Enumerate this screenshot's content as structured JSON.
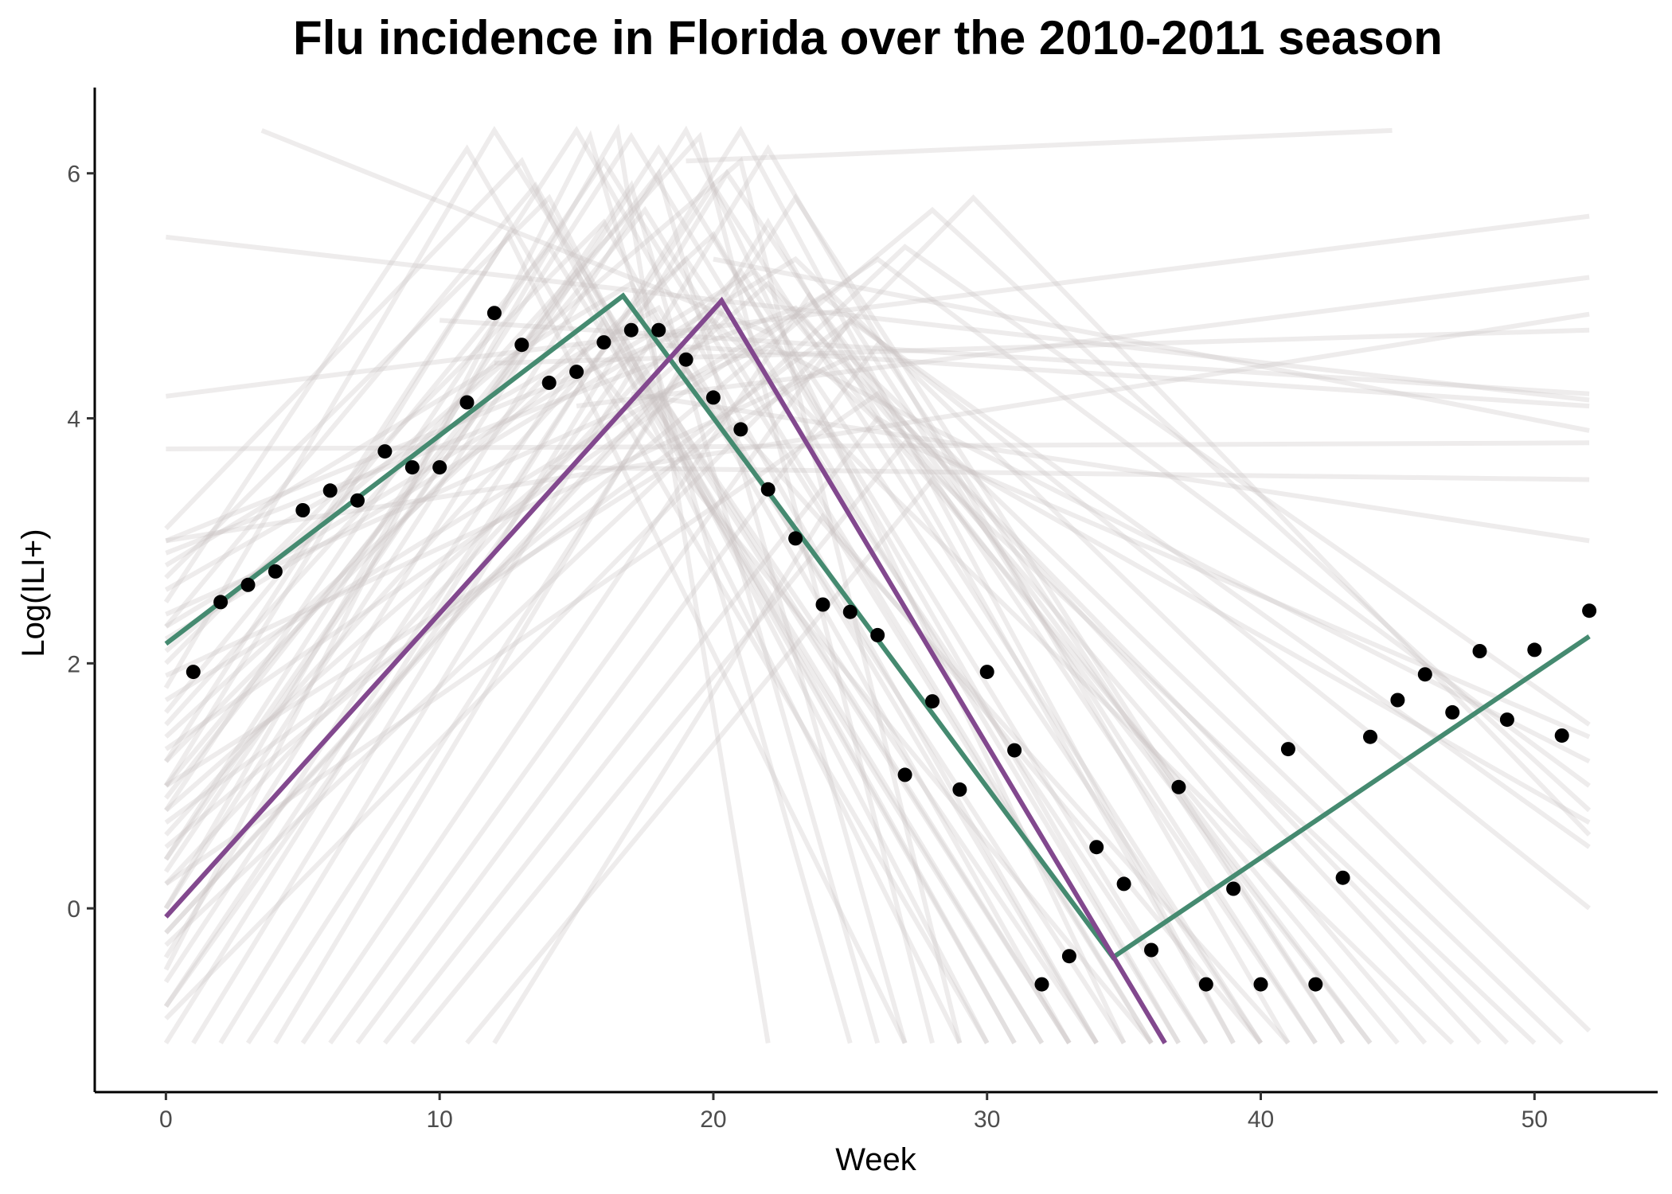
{
  "chart_data": {
    "type": "line",
    "title": "Flu incidence in Florida over the 2010-2011 season",
    "xlabel": "Week",
    "ylabel": "Log(ILI+)",
    "xlim": [
      -2.6,
      54.5
    ],
    "ylim": [
      -1.5,
      6.7
    ],
    "x_ticks": [
      0,
      10,
      20,
      30,
      40,
      50
    ],
    "y_ticks": [
      0,
      2,
      4,
      6
    ],
    "grid": false,
    "legend": "none",
    "colors": {
      "observed": "#000000",
      "fit": "#458a70",
      "alternative": "#82488e",
      "samples": "#c8c0c0"
    },
    "series": [
      {
        "kind": "points",
        "color_key": "observed",
        "x": [
          1,
          2,
          3,
          4,
          5,
          6,
          7,
          8,
          9,
          10,
          11,
          12,
          13,
          14,
          15,
          16,
          17,
          18,
          19,
          20,
          21,
          22,
          23,
          24,
          25,
          26,
          27,
          28,
          29,
          30,
          31,
          32,
          33,
          34,
          35,
          36,
          37,
          38,
          39,
          40,
          41,
          42,
          43,
          44,
          45,
          46,
          47,
          48,
          49,
          50,
          51,
          52
        ],
        "y": [
          1.93,
          2.5,
          2.64,
          2.75,
          3.25,
          3.41,
          3.33,
          3.73,
          3.6,
          3.6,
          4.13,
          4.86,
          4.6,
          4.29,
          4.38,
          4.62,
          4.72,
          4.72,
          4.48,
          4.17,
          3.91,
          3.42,
          3.02,
          2.48,
          2.42,
          2.23,
          1.09,
          1.69,
          0.97,
          1.93,
          1.29,
          -0.62,
          -0.39,
          0.5,
          0.2,
          -0.34,
          0.99,
          -0.62,
          0.16,
          -0.62,
          1.3,
          -0.62,
          0.25,
          1.4,
          1.7,
          1.91,
          1.6,
          2.1,
          1.54,
          2.11,
          1.41,
          2.43
        ]
      },
      {
        "kind": "line",
        "color_key": "fit",
        "x": [
          0,
          16.7,
          34.6,
          52
        ],
        "y": [
          2.16,
          5.0,
          -0.4,
          2.22
        ]
      },
      {
        "kind": "line",
        "color_key": "alternative",
        "x": [
          0,
          20.3,
          36.5
        ],
        "y": [
          -0.07,
          4.96,
          -1.1
        ]
      }
    ],
    "samples": [
      {
        "x": [
          3.5,
          22
        ],
        "y": [
          6.35,
          4.7
        ]
      },
      {
        "x": [
          0,
          52
        ],
        "y": [
          5.48,
          4.15
        ]
      },
      {
        "x": [
          0,
          52
        ],
        "y": [
          3.75,
          3.8
        ]
      },
      {
        "x": [
          0,
          52
        ],
        "y": [
          4.18,
          5.65
        ]
      },
      {
        "x": [
          0,
          52
        ],
        "y": [
          3.0,
          4.85
        ]
      },
      {
        "x": [
          17,
          52
        ],
        "y": [
          4.2,
          3.0
        ]
      },
      {
        "x": [
          14,
          52
        ],
        "y": [
          3.6,
          3.5
        ]
      },
      {
        "x": [
          12,
          52
        ],
        "y": [
          4.45,
          4.72
        ]
      },
      {
        "x": [
          10,
          52
        ],
        "y": [
          4.8,
          4.2
        ]
      },
      {
        "x": [
          20,
          52
        ],
        "y": [
          5.3,
          3.9
        ]
      },
      {
        "x": [
          15,
          52
        ],
        "y": [
          4.1,
          5.15
        ]
      },
      {
        "x": [
          18,
          52
        ],
        "y": [
          4.6,
          4.1
        ]
      },
      {
        "x": [
          19,
          44.8
        ],
        "y": [
          6.1,
          6.35
        ]
      },
      {
        "x": [
          0,
          11,
          30
        ],
        "y": [
          2.5,
          6.2,
          -1.1
        ]
      },
      {
        "x": [
          0,
          12,
          33
        ],
        "y": [
          1.8,
          6.35,
          -1.1
        ]
      },
      {
        "x": [
          0,
          13.5,
          31
        ],
        "y": [
          2.3,
          5.9,
          -1.1
        ]
      },
      {
        "x": [
          0,
          15,
          34
        ],
        "y": [
          1.2,
          6.35,
          -1.1
        ]
      },
      {
        "x": [
          0,
          16,
          36
        ],
        "y": [
          0.8,
          6.1,
          -1.1
        ]
      },
      {
        "x": [
          0,
          17,
          37
        ],
        "y": [
          0.4,
          6.3,
          -1.1
        ]
      },
      {
        "x": [
          0,
          18,
          38
        ],
        "y": [
          0.0,
          6.2,
          -1.1
        ]
      },
      {
        "x": [
          0,
          19,
          35
        ],
        "y": [
          -0.4,
          6.35,
          -1.1
        ]
      },
      {
        "x": [
          0,
          20,
          40
        ],
        "y": [
          -0.8,
          5.9,
          -1.1
        ]
      },
      {
        "x": [
          0,
          21,
          39
        ],
        "y": [
          -1.1,
          6.35,
          -1.1
        ]
      },
      {
        "x": [
          1,
          20.5,
          42
        ],
        "y": [
          -1.1,
          6.0,
          -1.1
        ]
      },
      {
        "x": [
          2,
          22,
          41
        ],
        "y": [
          -1.1,
          6.2,
          -1.1
        ]
      },
      {
        "x": [
          3,
          23,
          43
        ],
        "y": [
          -1.1,
          5.8,
          -1.1
        ]
      },
      {
        "x": [
          0,
          14,
          32
        ],
        "y": [
          1.6,
          5.4,
          -1.1
        ]
      },
      {
        "x": [
          0,
          16,
          33
        ],
        "y": [
          2.0,
          5.6,
          -1.1
        ]
      },
      {
        "x": [
          0,
          17.5,
          36
        ],
        "y": [
          1.0,
          5.7,
          -1.1
        ]
      },
      {
        "x": [
          0,
          19,
          38
        ],
        "y": [
          0.6,
          5.3,
          -1.1
        ]
      },
      {
        "x": [
          0,
          20,
          37
        ],
        "y": [
          1.4,
          5.5,
          -1.1
        ]
      },
      {
        "x": [
          0,
          21,
          40
        ],
        "y": [
          0.2,
          5.2,
          -1.1
        ]
      },
      {
        "x": [
          4,
          22,
          39
        ],
        "y": [
          -1.1,
          5.6,
          -1.1
        ]
      },
      {
        "x": [
          5,
          23.5,
          44
        ],
        "y": [
          -1.1,
          5.0,
          -1.1
        ]
      },
      {
        "x": [
          6,
          25,
          42
        ],
        "y": [
          -1.1,
          4.8,
          -1.1
        ]
      },
      {
        "x": [
          0,
          18,
          34
        ],
        "y": [
          2.6,
          4.9,
          -1.1
        ]
      },
      {
        "x": [
          0,
          17,
          35
        ],
        "y": [
          2.8,
          5.1,
          -1.1
        ]
      },
      {
        "x": [
          0,
          15,
          36
        ],
        "y": [
          1.2,
          4.6,
          -1.1
        ]
      },
      {
        "x": [
          0,
          19,
          41
        ],
        "y": [
          -0.2,
          4.4,
          -1.1
        ]
      },
      {
        "x": [
          7,
          26,
          43
        ],
        "y": [
          -1.1,
          4.6,
          -1.1
        ]
      },
      {
        "x": [
          0,
          16.5,
          22
        ],
        "y": [
          0.0,
          6.35,
          -1.1
        ]
      },
      {
        "x": [
          0,
          15.5,
          25
        ],
        "y": [
          -0.5,
          6.3,
          -1.1
        ]
      },
      {
        "x": [
          0,
          17,
          26
        ],
        "y": [
          0.3,
          5.9,
          -1.1
        ]
      },
      {
        "x": [
          0,
          18,
          27
        ],
        "y": [
          0.9,
          6.0,
          -1.1
        ]
      },
      {
        "x": [
          0,
          19.5,
          28
        ],
        "y": [
          1.5,
          6.3,
          -1.1
        ]
      },
      {
        "x": [
          0,
          21,
          29
        ],
        "y": [
          2.1,
          6.1,
          -1.1
        ]
      },
      {
        "x": [
          0,
          23,
          52
        ],
        "y": [
          2.2,
          5.3,
          -1.0
        ]
      },
      {
        "x": [
          0,
          24,
          52
        ],
        "y": [
          1.7,
          5.0,
          0.0
        ]
      },
      {
        "x": [
          0,
          25,
          52
        ],
        "y": [
          0.7,
          4.8,
          0.5
        ]
      },
      {
        "x": [
          0,
          26,
          52
        ],
        "y": [
          1.3,
          5.3,
          1.0
        ]
      },
      {
        "x": [
          0,
          27,
          52
        ],
        "y": [
          -0.3,
          5.4,
          1.5
        ]
      },
      {
        "x": [
          0,
          28,
          52
        ],
        "y": [
          0.5,
          5.7,
          0.8
        ]
      },
      {
        "x": [
          0,
          29.5,
          52
        ],
        "y": [
          -0.9,
          5.8,
          0.6
        ]
      },
      {
        "x": [
          0,
          22,
          52
        ],
        "y": [
          2.4,
          4.6,
          1.2
        ]
      },
      {
        "x": [
          0,
          24,
          50
        ],
        "y": [
          1.0,
          4.4,
          -1.1
        ]
      },
      {
        "x": [
          0,
          26,
          48
        ],
        "y": [
          0.2,
          4.2,
          -1.1
        ]
      },
      {
        "x": [
          0,
          23,
          46
        ],
        "y": [
          2.9,
          4.9,
          -1.1
        ]
      },
      {
        "x": [
          0,
          25,
          51
        ],
        "y": [
          1.9,
          4.5,
          -1.1
        ]
      },
      {
        "x": [
          0,
          21.5,
          45
        ],
        "y": [
          2.3,
          5.2,
          -1.1
        ]
      },
      {
        "x": [
          0,
          20,
          47
        ],
        "y": [
          3.0,
          4.8,
          -1.1
        ]
      },
      {
        "x": [
          0,
          22,
          49
        ],
        "y": [
          0.8,
          5.1,
          -1.1
        ]
      },
      {
        "x": [
          8,
          26,
          52
        ],
        "y": [
          -1.1,
          4.0,
          0.7
        ]
      },
      {
        "x": [
          9,
          27,
          52
        ],
        "y": [
          -1.1,
          3.8,
          1.4
        ]
      },
      {
        "x": [
          11,
          28,
          44
        ],
        "y": [
          -1.1,
          3.5,
          -1.1
        ]
      },
      {
        "x": [
          12,
          24,
          40
        ],
        "y": [
          -1.1,
          3.2,
          -1.1
        ]
      },
      {
        "x": [
          0,
          14,
          30
        ],
        "y": [
          2.7,
          5.8,
          -1.1
        ]
      },
      {
        "x": [
          0,
          13,
          29
        ],
        "y": [
          3.1,
          6.1,
          -1.1
        ]
      },
      {
        "x": [
          0,
          12.5,
          27
        ],
        "y": [
          1.0,
          5.5,
          -1.1
        ]
      },
      {
        "x": [
          0,
          15,
          31
        ],
        "y": [
          0.4,
          5.2,
          -1.1
        ]
      },
      {
        "x": [
          0,
          16,
          32
        ],
        "y": [
          -0.6,
          4.8,
          -1.1
        ]
      },
      {
        "x": [
          0,
          17,
          33
        ],
        "y": [
          -0.8,
          4.5,
          -1.1
        ]
      },
      {
        "x": [
          0,
          18,
          34
        ],
        "y": [
          -0.2,
          4.2,
          -1.1
        ]
      }
    ]
  }
}
